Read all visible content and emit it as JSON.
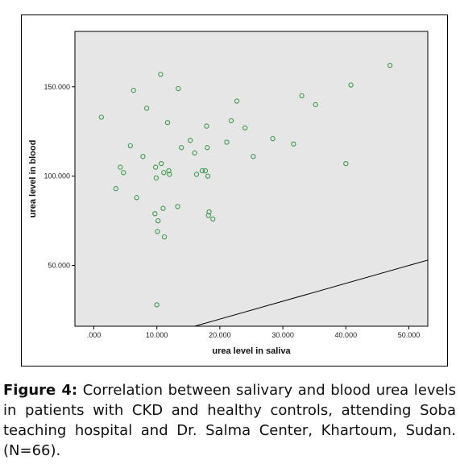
{
  "chart_data": {
    "type": "scatter",
    "title": "",
    "xlabel": "urea level in saliva",
    "ylabel": "urea level in blood",
    "xlim": [
      -3,
      53
    ],
    "ylim": [
      16,
      181
    ],
    "x_ticks": [
      0,
      10,
      20,
      30,
      40,
      50
    ],
    "x_tick_labels": [
      ".000",
      "10.000",
      "20.000",
      "30.000",
      "40.000",
      "50.000"
    ],
    "y_ticks": [
      50,
      100,
      150
    ],
    "y_tick_labels": [
      "50.000",
      "100.000",
      "150.000"
    ],
    "reference_line": "identity (y = x)",
    "grid": false,
    "legend": "none",
    "colors": {
      "plot_bg": "#e6e6e6",
      "marker": "#3a9a4a",
      "line": "#000000"
    },
    "series": [
      {
        "marker": "open-circle",
        "points": [
          [
            1.2,
            133
          ],
          [
            3.5,
            93
          ],
          [
            4.2,
            105
          ],
          [
            4.7,
            102
          ],
          [
            5.8,
            117
          ],
          [
            6.3,
            148
          ],
          [
            6.8,
            88
          ],
          [
            7.8,
            111
          ],
          [
            8.4,
            138
          ],
          [
            9.8,
            105
          ],
          [
            9.9,
            99
          ],
          [
            9.7,
            79
          ],
          [
            10.2,
            75
          ],
          [
            10.1,
            69
          ],
          [
            10.0,
            28
          ],
          [
            10.6,
            157
          ],
          [
            10.7,
            107
          ],
          [
            11.0,
            82
          ],
          [
            11.2,
            66
          ],
          [
            11.1,
            102
          ],
          [
            11.7,
            130
          ],
          [
            11.9,
            103
          ],
          [
            12.0,
            101
          ],
          [
            13.4,
            149
          ],
          [
            13.3,
            83
          ],
          [
            13.9,
            116
          ],
          [
            15.3,
            120
          ],
          [
            16.0,
            113
          ],
          [
            16.3,
            101
          ],
          [
            17.2,
            103
          ],
          [
            17.9,
            128
          ],
          [
            17.7,
            103
          ],
          [
            18.0,
            116
          ],
          [
            18.1,
            100
          ],
          [
            18.2,
            78
          ],
          [
            18.3,
            80
          ],
          [
            18.9,
            76
          ],
          [
            21.1,
            119
          ],
          [
            21.8,
            131
          ],
          [
            22.7,
            142
          ],
          [
            24.0,
            127
          ],
          [
            25.3,
            111
          ],
          [
            28.4,
            121
          ],
          [
            31.7,
            118
          ],
          [
            33.0,
            145
          ],
          [
            35.2,
            140
          ],
          [
            40.0,
            107
          ],
          [
            40.8,
            151
          ],
          [
            47.0,
            162
          ]
        ]
      }
    ]
  },
  "caption": {
    "label": "Figure 4:",
    "text": " Correlation between salivary and blood urea levels in patients with CKD and healthy controls, attending Soba teaching hospital and Dr. Salma Center, Khartoum, Sudan. (N=66)."
  }
}
